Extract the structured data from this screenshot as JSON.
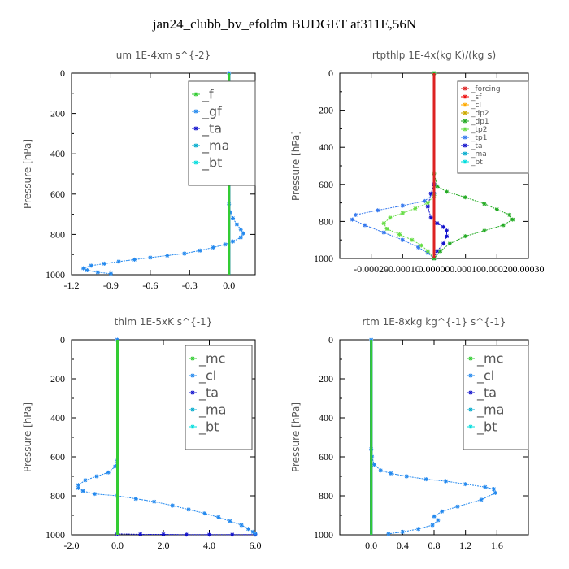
{
  "title": "jan24_clubb_bv_efoldm  BUDGET at311E,56N",
  "chart_data": [
    {
      "type": "line",
      "title": "um   1E-4xm s^{-2}",
      "ylabel": "Pressure [hPa]",
      "xlim": [
        -1.2,
        0.2
      ],
      "ylim": [
        1000,
        0
      ],
      "xticks": [
        -1.2,
        -0.9,
        -0.6,
        -0.3,
        0.0
      ],
      "xtick_labels": [
        "-1.2",
        "-0.9",
        "-0.6",
        "-0.3",
        "0.0"
      ],
      "yticks": [
        0,
        200,
        400,
        600,
        800,
        1000
      ],
      "ytick_labels": [
        "0",
        "200",
        "400",
        "600",
        "800",
        "1000"
      ],
      "legend": "top-right",
      "series": [
        {
          "name": "_f",
          "color": "#33cc33",
          "x": [
            0.0,
            0.0
          ],
          "y": [
            0,
            1000
          ]
        },
        {
          "name": "_gf",
          "color": "#2288ee",
          "x": [
            0.0,
            0.0,
            0.0,
            0.01,
            0.03,
            0.06,
            0.09,
            0.11,
            0.09,
            0.03,
            -0.03,
            -0.12,
            -0.22,
            -0.34,
            -0.47,
            -0.6,
            -0.72,
            -0.84,
            -0.95,
            -1.05,
            -1.11,
            -1.08,
            -1.0,
            -0.9
          ],
          "y": [
            0,
            400,
            650,
            690,
            720,
            750,
            775,
            795,
            815,
            835,
            850,
            865,
            880,
            895,
            905,
            915,
            925,
            935,
            945,
            955,
            968,
            978,
            988,
            995
          ]
        },
        {
          "name": "_ta",
          "color": "#1111cc",
          "x": [
            0.0,
            0.0
          ],
          "y": [
            0,
            1000
          ]
        },
        {
          "name": "_ma",
          "color": "#00aacc",
          "x": [
            0.0,
            0.0
          ],
          "y": [
            0,
            1000
          ]
        },
        {
          "name": "_bt",
          "color": "#00dddd",
          "x": [
            0.0,
            0.0
          ],
          "y": [
            0,
            1000
          ]
        }
      ]
    },
    {
      "type": "line",
      "title": "rtpthlp   1E-4x(kg K)/(kg s)",
      "ylabel": "Pressure [hPa]",
      "xlim": [
        -0.0003,
        0.0003
      ],
      "ylim": [
        1000,
        0
      ],
      "xticks": [
        -0.0002,
        -0.0001,
        0.0,
        0.0001,
        0.0002,
        0.0003
      ],
      "xtick_labels": [
        "-0.00020",
        "-0.00010",
        "0.00000",
        "0.00010",
        "0.00020",
        "0.00030"
      ],
      "yticks": [
        0,
        200,
        400,
        600,
        800,
        1000
      ],
      "ytick_labels": [
        "0",
        "200",
        "400",
        "600",
        "800",
        "1000"
      ],
      "legend": "top-right",
      "series": [
        {
          "name": "_forcing",
          "color": "#dd2222",
          "x": [
            0.0,
            0.0
          ],
          "y": [
            0,
            1000
          ]
        },
        {
          "name": "_sf",
          "color": "#ee1111",
          "x": [
            0.0,
            0.0
          ],
          "y": [
            0,
            1000
          ]
        },
        {
          "name": "_cl",
          "color": "#ffaa00",
          "x": [
            0.0,
            0.0
          ],
          "y": [
            0,
            1000
          ]
        },
        {
          "name": "_dp2",
          "color": "#ccaa00",
          "x": [
            0.0,
            0.0
          ],
          "y": [
            0,
            1000
          ]
        },
        {
          "name": "_dp1",
          "color": "#22aa22",
          "x": [
            0.0,
            0.0,
            1e-05,
            4e-05,
            0.0001,
            0.00016,
            0.0002,
            0.00024,
            0.00025,
            0.00022,
            0.00016,
            0.0001,
            5e-05,
            2e-05,
            0.0
          ],
          "y": [
            0,
            540,
            610,
            640,
            670,
            705,
            735,
            765,
            790,
            820,
            850,
            880,
            920,
            960,
            1000
          ]
        },
        {
          "name": "_tp2",
          "color": "#66dd44",
          "x": [
            0.0,
            0.0,
            -2e-05,
            -6e-05,
            -0.0001,
            -0.00014,
            -0.00016,
            -0.00015,
            -0.00011,
            -7e-05,
            -4e-05,
            -2e-05,
            0.0
          ],
          "y": [
            0,
            660,
            700,
            730,
            755,
            780,
            810,
            840,
            870,
            900,
            930,
            960,
            1000
          ]
        },
        {
          "name": "_tp1",
          "color": "#3377ee",
          "x": [
            0.0,
            0.0,
            -3e-05,
            -0.0001,
            -0.00018,
            -0.00025,
            -0.00026,
            -0.00022,
            -0.00016,
            -0.0001,
            -5e-05,
            -2e-05,
            0.0
          ],
          "y": [
            0,
            650,
            690,
            715,
            740,
            765,
            790,
            820,
            860,
            900,
            940,
            970,
            1000
          ]
        },
        {
          "name": "_ta",
          "color": "#1111cc",
          "x": [
            0.0,
            0.0,
            -1e-05,
            -2e-05,
            -1e-05,
            1e-05,
            3e-05,
            4e-05,
            4e-05,
            3e-05,
            1e-05,
            0.0
          ],
          "y": [
            0,
            600,
            650,
            720,
            780,
            810,
            830,
            850,
            880,
            920,
            960,
            1000
          ]
        },
        {
          "name": "_ma",
          "color": "#00aacc",
          "x": [
            0.0,
            0.0
          ],
          "y": [
            0,
            1000
          ]
        },
        {
          "name": "_bt",
          "color": "#00dddd",
          "x": [
            0.0,
            0.0
          ],
          "y": [
            0,
            1000
          ]
        }
      ]
    },
    {
      "type": "line",
      "title": "thlm   1E-5xK s^{-1}",
      "ylabel": "Pressure [hPa]",
      "xlim": [
        -2.0,
        6.0
      ],
      "ylim": [
        1000,
        0
      ],
      "xticks": [
        -2.0,
        0.0,
        2.0,
        4.0,
        6.0
      ],
      "xtick_labels": [
        "-2.0",
        "0.0",
        "2.0",
        "4.0",
        "6.0"
      ],
      "yticks": [
        0,
        200,
        400,
        600,
        800,
        1000
      ],
      "ytick_labels": [
        "0",
        "200",
        "400",
        "600",
        "800",
        "1000"
      ],
      "legend": "top-right",
      "series": [
        {
          "name": "_mc",
          "color": "#33cc33",
          "x": [
            0.0,
            0.0
          ],
          "y": [
            0,
            1000
          ]
        },
        {
          "name": "_cl",
          "color": "#2288ee",
          "x": [
            0.0,
            0.0,
            -0.1,
            -0.4,
            -0.9,
            -1.4,
            -1.7,
            -1.7,
            -1.5,
            -1.0,
            0.0,
            0.8,
            1.6,
            2.4,
            3.1,
            3.8,
            4.4,
            4.9,
            5.4,
            5.7,
            5.9,
            6.0
          ],
          "y": [
            0,
            620,
            650,
            680,
            700,
            720,
            745,
            760,
            775,
            790,
            800,
            815,
            830,
            850,
            870,
            890,
            910,
            930,
            950,
            970,
            985,
            995
          ]
        },
        {
          "name": "_ta",
          "color": "#1111cc",
          "x": [
            0.0,
            0.0,
            1.0,
            2.0,
            3.0,
            4.0,
            5.0,
            6.0
          ],
          "y": [
            0,
            995,
            998,
            998,
            999,
            999,
            999,
            999
          ]
        },
        {
          "name": "_ma",
          "color": "#00aacc",
          "x": [
            0.0,
            0.0
          ],
          "y": [
            0,
            1000
          ]
        },
        {
          "name": "_bt",
          "color": "#00dddd",
          "x": [
            0.0,
            0.0
          ],
          "y": [
            0,
            1000
          ]
        }
      ]
    },
    {
      "type": "line",
      "title": "rtm   1E-8xkg kg^{-1} s^{-1}",
      "ylabel": "Pressure [hPa]",
      "xlim": [
        -0.4,
        2.0
      ],
      "ylim": [
        1000,
        0
      ],
      "xticks": [
        0.0,
        0.4,
        0.8,
        1.2,
        1.6
      ],
      "xtick_labels": [
        "0.0",
        "0.4",
        "0.8",
        "1.2",
        "1.6"
      ],
      "yticks": [
        0,
        200,
        400,
        600,
        800,
        1000
      ],
      "ytick_labels": [
        "0",
        "200",
        "400",
        "600",
        "800",
        "1000"
      ],
      "legend": "top-right",
      "series": [
        {
          "name": "_mc",
          "color": "#33cc33",
          "x": [
            0.0,
            0.0
          ],
          "y": [
            0,
            1000
          ]
        },
        {
          "name": "_cl",
          "color": "#2288ee",
          "x": [
            0.0,
            0.0,
            0.01,
            0.04,
            0.12,
            0.25,
            0.45,
            0.7,
            0.95,
            1.2,
            1.45,
            1.56,
            1.58,
            1.4,
            1.1,
            0.9,
            0.8,
            0.85,
            0.78,
            0.6,
            0.4,
            0.22
          ],
          "y": [
            0,
            560,
            600,
            640,
            670,
            685,
            700,
            715,
            725,
            740,
            755,
            765,
            785,
            820,
            855,
            880,
            905,
            925,
            950,
            970,
            985,
            995
          ]
        },
        {
          "name": "_ta",
          "color": "#1111cc",
          "x": [
            0.0,
            0.0
          ],
          "y": [
            0,
            1000
          ]
        },
        {
          "name": "_ma",
          "color": "#00aacc",
          "x": [
            0.0,
            0.0
          ],
          "y": [
            0,
            1000
          ]
        },
        {
          "name": "_bt",
          "color": "#00dddd",
          "x": [
            0.0,
            0.0
          ],
          "y": [
            0,
            1000
          ]
        }
      ]
    }
  ]
}
